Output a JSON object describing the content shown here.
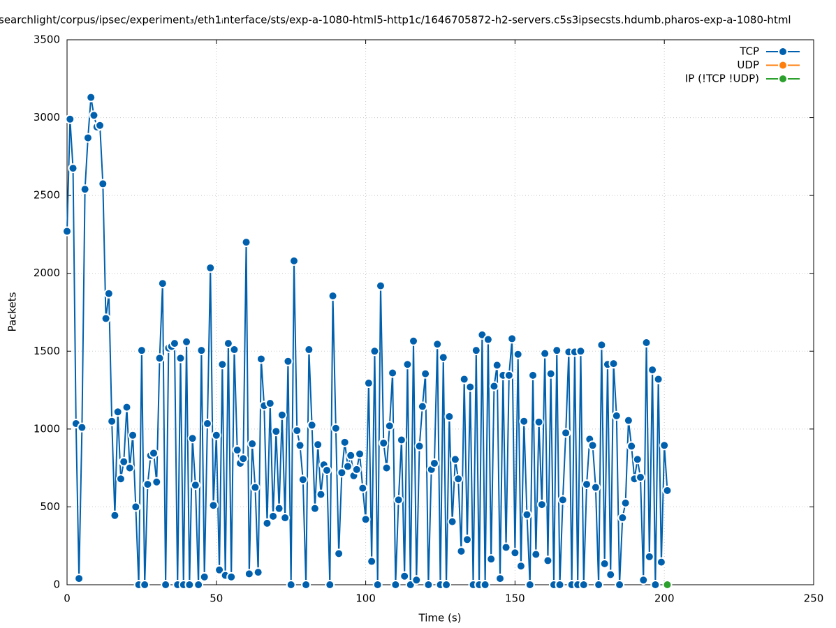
{
  "chart_data": {
    "type": "line",
    "title": "searchlight/corpus/ipsec/experiment₃/eth1ᵢnterface/sts/exp-a-1080-html5-http1c/1646705872-h2-servers.c5s3ipsecsts.hdumb.pharos-exp-a-1080-html",
    "x_label": "Time (s)",
    "y_label": "Packets",
    "xlim": [
      0,
      250
    ],
    "ylim": [
      0,
      3500
    ],
    "xticks": [
      0,
      50,
      100,
      150,
      200,
      250
    ],
    "yticks": [
      0,
      500,
      1000,
      1500,
      2000,
      2500,
      3000,
      3500
    ],
    "grid": true,
    "legend": "top right",
    "series": [
      {
        "name": "TCP",
        "color": "#0060ad",
        "x": [
          0,
          1,
          2,
          3,
          4,
          5,
          6,
          7,
          8,
          9,
          10,
          11,
          12,
          13,
          14,
          15,
          16,
          17,
          18,
          19,
          20,
          21,
          22,
          23,
          24,
          25,
          26,
          27,
          28,
          29,
          30,
          31,
          32,
          33,
          34,
          35,
          36,
          37,
          38,
          39,
          40,
          41,
          42,
          43,
          44,
          45,
          46,
          47,
          48,
          49,
          50,
          51,
          52,
          53,
          54,
          55,
          56,
          57,
          58,
          59,
          60,
          61,
          62,
          63,
          64,
          65,
          66,
          67,
          68,
          69,
          70,
          71,
          72,
          73,
          74,
          75,
          76,
          77,
          78,
          79,
          80,
          81,
          82,
          83,
          84,
          85,
          86,
          87,
          88,
          89,
          90,
          91,
          92,
          93,
          94,
          95,
          96,
          97,
          98,
          99,
          100,
          101,
          102,
          103,
          104,
          105,
          106,
          107,
          108,
          109,
          110,
          111,
          112,
          113,
          114,
          115,
          116,
          117,
          118,
          119,
          120,
          121,
          122,
          123,
          124,
          125,
          126,
          127,
          128,
          129,
          130,
          131,
          132,
          133,
          134,
          135,
          136,
          137,
          138,
          139,
          140,
          141,
          142,
          143,
          144,
          145,
          146,
          147,
          148,
          149,
          150,
          151,
          152,
          153,
          154,
          155,
          156,
          157,
          158,
          159,
          160,
          161,
          162,
          163,
          164,
          165,
          166,
          167,
          168,
          169,
          170,
          171,
          172,
          173,
          174,
          175,
          176,
          177,
          178,
          179,
          180,
          181,
          182,
          183,
          184,
          185,
          186,
          187,
          188,
          189,
          190,
          191,
          192,
          193,
          194,
          195,
          196,
          197,
          198,
          199,
          200,
          201
        ],
        "values": [
          2270,
          2990,
          2675,
          1035,
          40,
          1010,
          2540,
          2870,
          3130,
          3015,
          2940,
          2950,
          2575,
          1710,
          1870,
          1050,
          445,
          1110,
          680,
          790,
          1140,
          750,
          960,
          500,
          0,
          1505,
          0,
          645,
          830,
          845,
          660,
          1455,
          1935,
          0,
          1520,
          1530,
          1550,
          0,
          1455,
          0,
          1560,
          0,
          940,
          640,
          0,
          1505,
          50,
          1035,
          2035,
          510,
          960,
          95,
          1415,
          60,
          1550,
          50,
          1510,
          865,
          780,
          810,
          2200,
          70,
          905,
          625,
          80,
          1450,
          1150,
          395,
          1165,
          440,
          985,
          490,
          1090,
          430,
          1435,
          0,
          2080,
          990,
          895,
          675,
          0,
          1510,
          1025,
          490,
          900,
          580,
          770,
          735,
          0,
          1855,
          1005,
          200,
          720,
          915,
          760,
          830,
          700,
          740,
          840,
          620,
          420,
          1295,
          150,
          1500,
          0,
          1920,
          910,
          750,
          1020,
          1360,
          0,
          545,
          930,
          55,
          1415,
          0,
          1565,
          30,
          890,
          1145,
          1355,
          0,
          740,
          780,
          1545,
          0,
          1460,
          0,
          1080,
          405,
          805,
          680,
          215,
          1320,
          290,
          1270,
          0,
          1505,
          0,
          1605,
          0,
          1575,
          165,
          1275,
          1410,
          40,
          1345,
          240,
          1345,
          1580,
          205,
          1480,
          120,
          1050,
          450,
          0,
          1345,
          195,
          1045,
          515,
          1485,
          155,
          1355,
          0,
          1505,
          0,
          545,
          975,
          1495,
          0,
          1495,
          0,
          1500,
          0,
          645,
          935,
          895,
          625,
          0,
          1540,
          135,
          1415,
          65,
          1420,
          1085,
          0,
          430,
          525,
          1055,
          890,
          680,
          805,
          690,
          30,
          1555,
          180,
          1380,
          0,
          1320,
          145,
          895,
          605
        ]
      },
      {
        "name": "UDP",
        "color": "#ff7f0e",
        "x": [],
        "values": []
      },
      {
        "name": "IP (!TCP  !UDP)",
        "color": "#2ca02c",
        "x": [
          201
        ],
        "values": [
          0
        ]
      }
    ]
  }
}
